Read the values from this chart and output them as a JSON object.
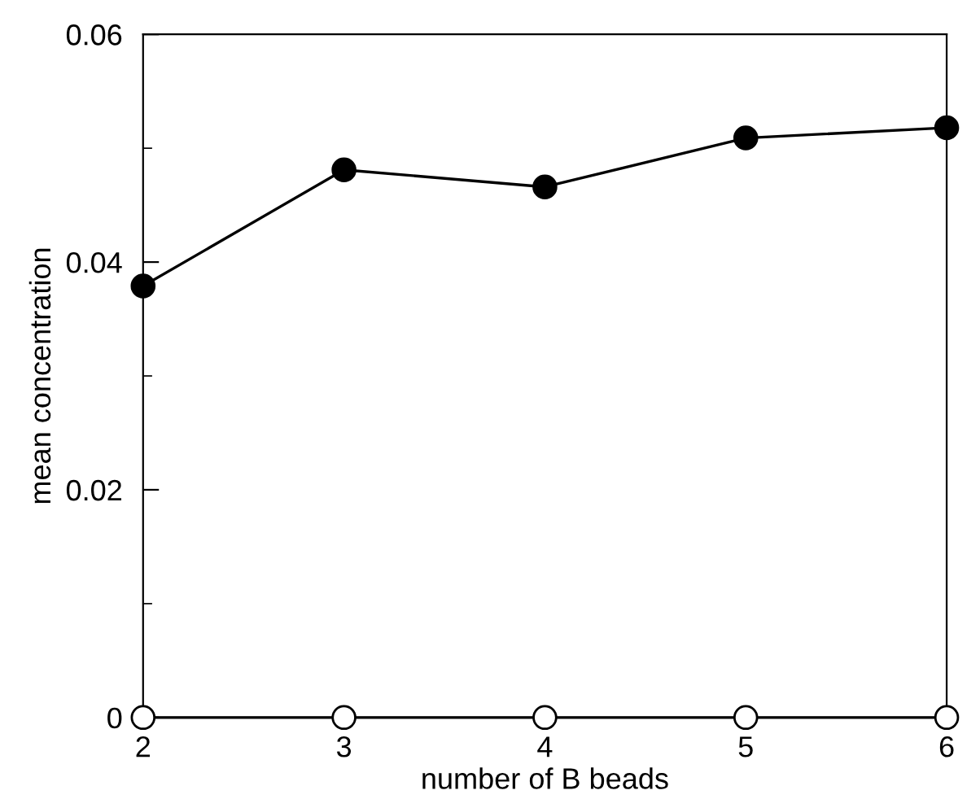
{
  "chart_data": {
    "type": "line",
    "xlabel": "number of B beads",
    "ylabel": "mean concentration",
    "x": [
      2,
      3,
      4,
      5,
      6
    ],
    "series": [
      {
        "color": "#000000",
        "values": [
          0.0379,
          0.0481,
          0.0466,
          0.0509,
          0.0518
        ]
      },
      {
        "color": "#000000",
        "values": [
          0,
          0,
          0,
          0,
          0
        ]
      }
    ],
    "xlim": [
      2,
      6
    ],
    "xticks": [
      2,
      3,
      4,
      5,
      6
    ],
    "ylim": [
      0,
      0.06
    ],
    "yticks": [
      0,
      0.02,
      0.04,
      0.06
    ],
    "marker": "circle",
    "line_style": "solid",
    "grid": false
  }
}
